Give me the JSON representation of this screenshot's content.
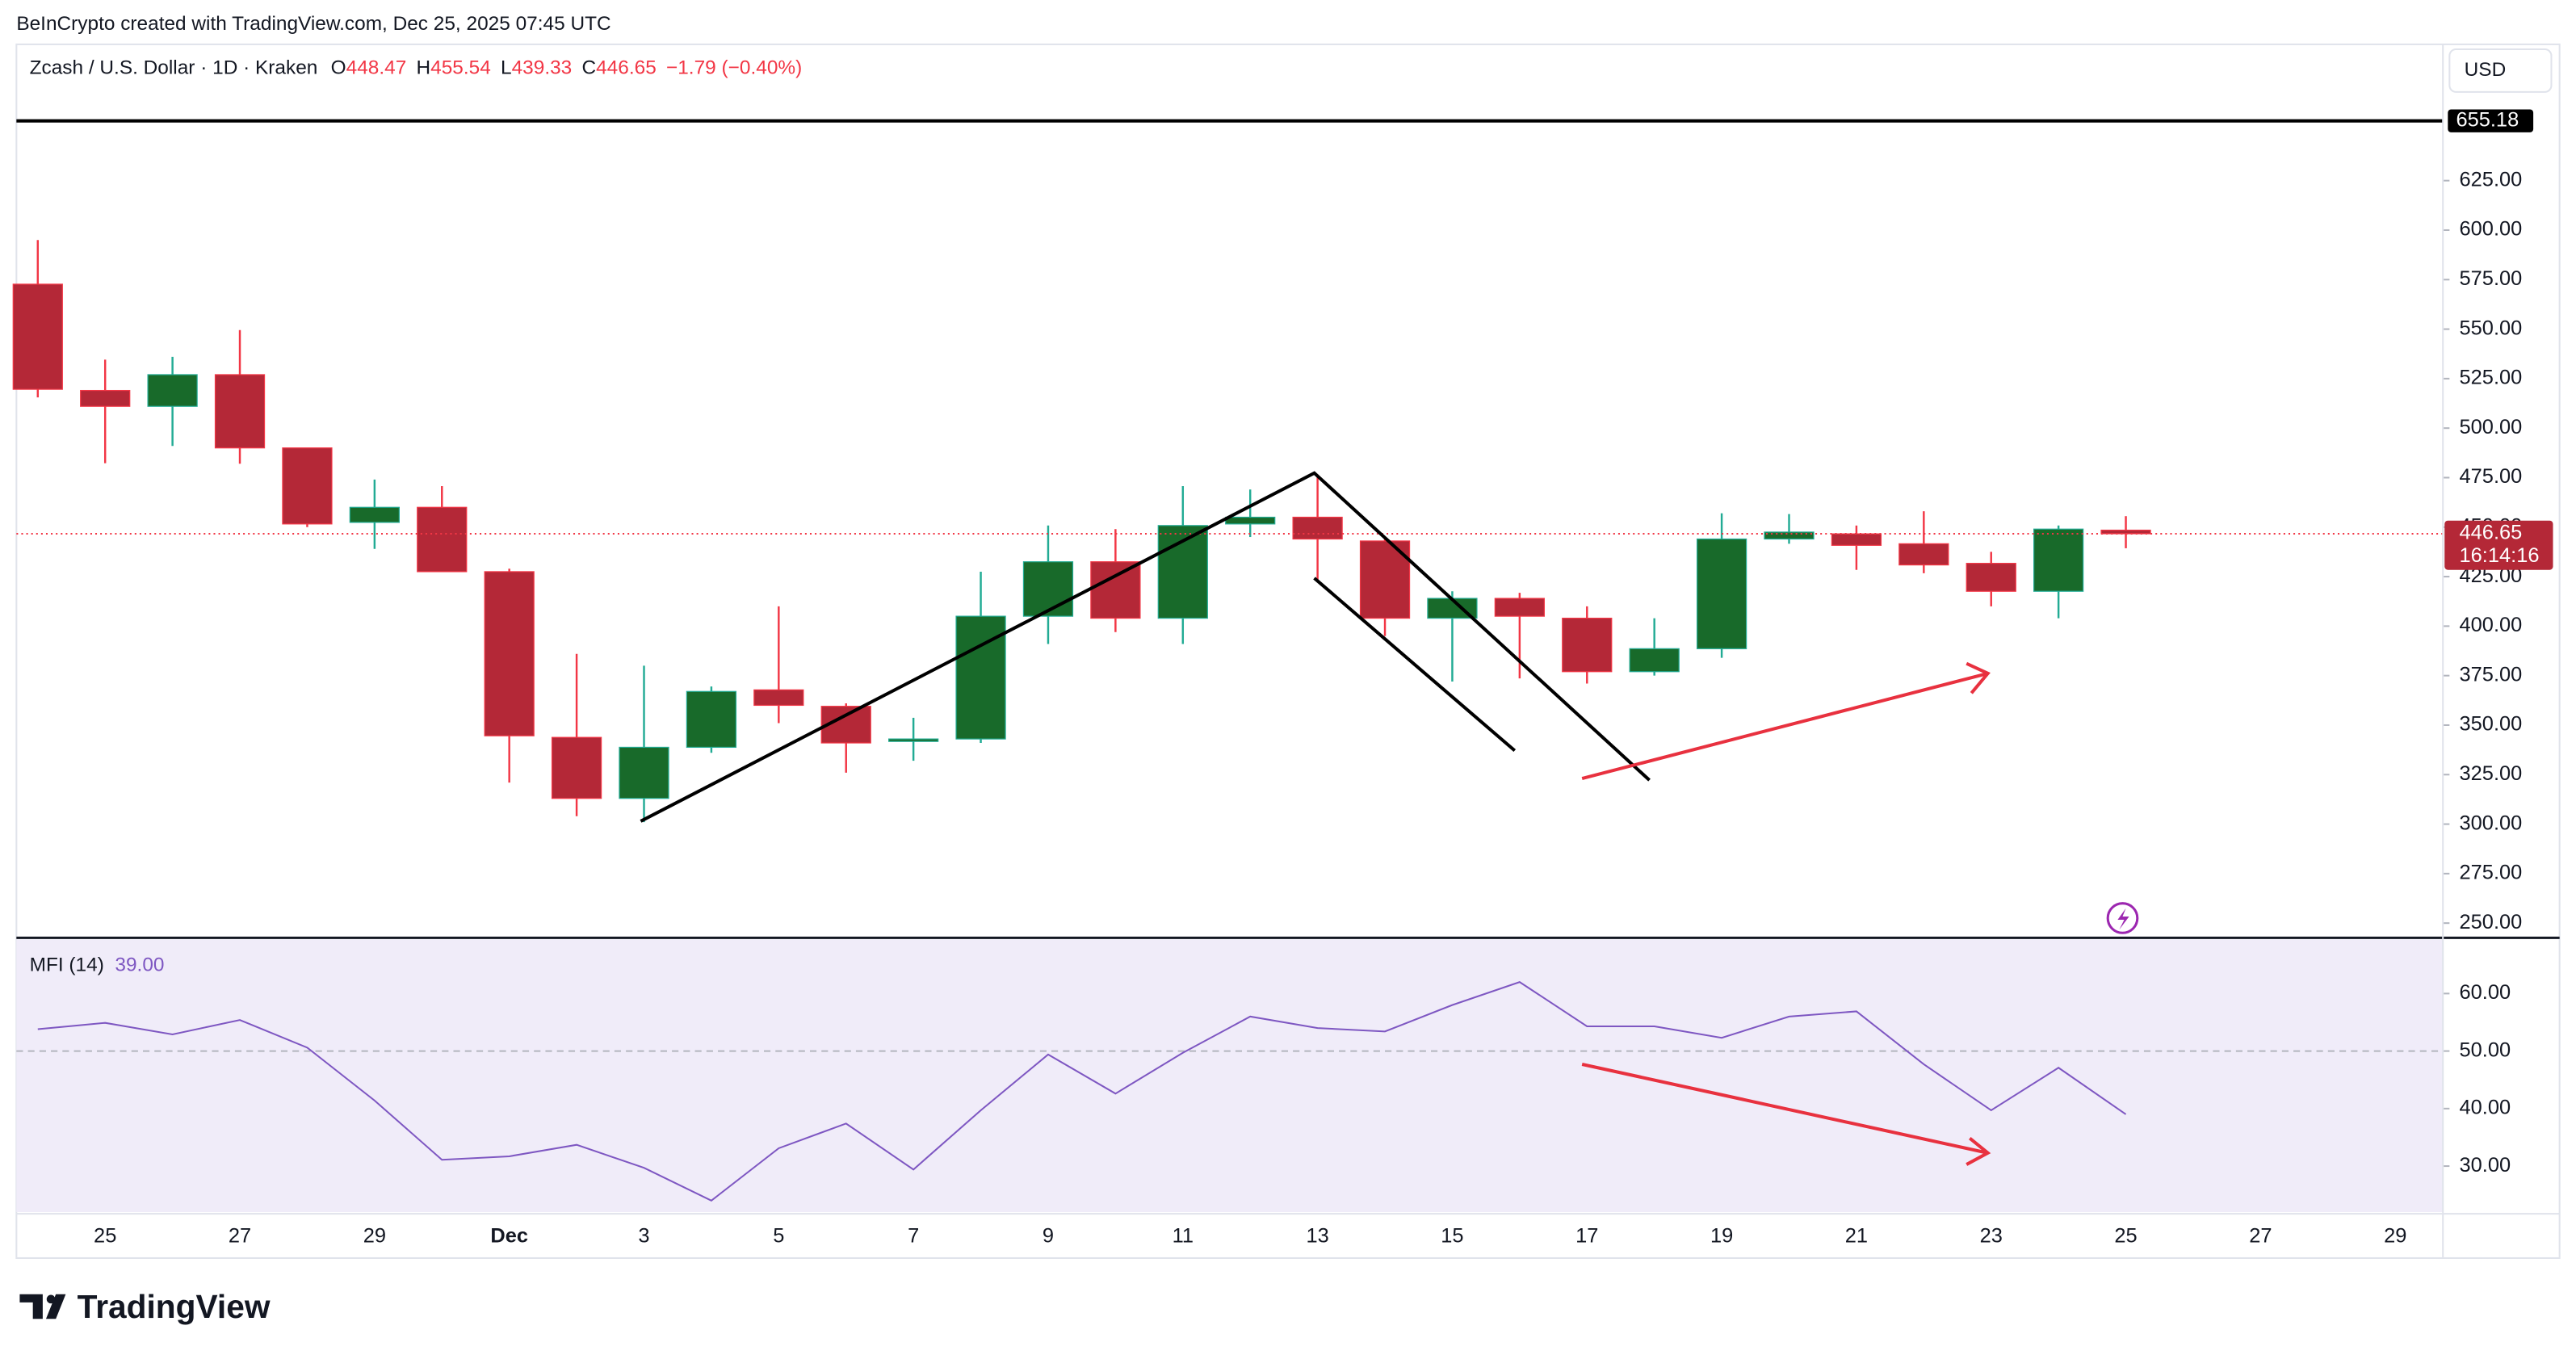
{
  "header": {
    "attribution": "BeInCrypto created with TradingView.com, Dec 25, 2025 07:45 UTC",
    "symbol": "Zcash / U.S. Dollar · 1D · Kraken",
    "ohlc_labels": [
      "O",
      "H",
      "L",
      "C"
    ],
    "change": "−1.79 (−0.40%)",
    "currency": "USD",
    "countdown": "16:14:16",
    "brand": "TradingView"
  },
  "chart_data": [
    {
      "type": "candlestick",
      "categories": [
        null,
        "25",
        null,
        "27",
        null,
        "29",
        null,
        "Dec",
        null,
        "3",
        null,
        "5",
        null,
        "7",
        null,
        "9",
        null,
        "11",
        null,
        "13",
        null,
        "15",
        null,
        "17",
        null,
        "19",
        null,
        "21",
        null,
        "23",
        null,
        "25",
        null,
        "27",
        null,
        "29"
      ],
      "open": [
        572.7,
        519,
        511,
        527,
        490,
        452.4,
        460,
        427.5,
        343.8,
        313,
        338.8,
        367.8,
        359.5,
        342,
        343,
        405,
        432.5,
        404,
        451.6,
        455,
        443,
        404,
        414,
        404,
        377,
        388.6,
        444,
        446.6,
        441.6,
        431.7,
        417.6,
        448.47,
        null,
        null,
        null,
        null
      ],
      "high": [
        595,
        534.6,
        536,
        549.5,
        490,
        474,
        470.7,
        429,
        386,
        380,
        369.5,
        410,
        361,
        353.7,
        427.5,
        450.8,
        449,
        470.7,
        469,
        476.5,
        445,
        417.6,
        416.8,
        410,
        404,
        457,
        456.6,
        450.8,
        458,
        437.5,
        450.8,
        455.54,
        null,
        null,
        null,
        null
      ],
      "low": [
        515.5,
        482.3,
        491,
        482,
        450,
        439,
        427.5,
        321,
        304,
        301,
        336,
        351,
        326,
        332,
        341,
        391,
        397,
        391,
        445,
        422.6,
        395,
        372,
        373.6,
        371,
        375,
        384,
        441.6,
        428.4,
        426.7,
        410,
        404,
        439.33,
        null,
        null,
        null,
        null
      ],
      "close": [
        519.6,
        511,
        527,
        490,
        451.6,
        460,
        427.5,
        344.6,
        313,
        338.8,
        367,
        360,
        341,
        343,
        405,
        432.5,
        404,
        450.8,
        455,
        444,
        404,
        414,
        405,
        377,
        388.6,
        444,
        447.5,
        440.8,
        430.9,
        417.6,
        449,
        446.65,
        null,
        null,
        null,
        null
      ],
      "up_color": "#186a2a",
      "down_color": "#b42837",
      "up_wick": "#22ab94",
      "down_wick": "#f23645",
      "ylim": [
        243.4,
        693
      ],
      "yticks": [
        {
          "value": 250,
          "label": "250.00"
        },
        {
          "value": 275,
          "label": "275.00"
        },
        {
          "value": 300,
          "label": "300.00"
        },
        {
          "value": 325,
          "label": "325.00"
        },
        {
          "value": 350,
          "label": "350.00"
        },
        {
          "value": 375,
          "label": "375.00"
        },
        {
          "value": 400,
          "label": "400.00"
        },
        {
          "value": 425,
          "label": "425.00"
        },
        {
          "value": 450,
          "label": "450.00"
        },
        {
          "value": 475,
          "label": "475.00"
        },
        {
          "value": 500,
          "label": "500.00"
        },
        {
          "value": 525,
          "label": "525.00"
        },
        {
          "value": 550,
          "label": "550.00"
        },
        {
          "value": 575,
          "label": "575.00"
        },
        {
          "value": 600,
          "label": "600.00"
        },
        {
          "value": 625,
          "label": "625.00"
        }
      ],
      "grid": false,
      "hline": {
        "value": 655.18,
        "color": "#000000"
      }
    },
    {
      "type": "line",
      "title": "MFI (14)",
      "current_label": "39.00",
      "color": "#7e57c2",
      "background": "#f0ecf9",
      "values": [
        53.8,
        54.9,
        52.9,
        55.4,
        50.6,
        41.4,
        31.1,
        31.7,
        33.7,
        29.7,
        24,
        33.1,
        37.4,
        29.4,
        39.7,
        49.4,
        42.6,
        49.7,
        56,
        54,
        53.4,
        58,
        62,
        54.3,
        54.3,
        52.3,
        56,
        56.9,
        47.7,
        39.7,
        47.1,
        39,
        null,
        null,
        null,
        null
      ],
      "ylim": [
        22,
        69.4
      ],
      "midline": 50,
      "yticks": [
        {
          "value": 30,
          "label": "30.00"
        },
        {
          "value": 40,
          "label": "40.00"
        },
        {
          "value": 50,
          "label": "50.00"
        },
        {
          "value": 60,
          "label": "60.00"
        }
      ]
    }
  ]
}
